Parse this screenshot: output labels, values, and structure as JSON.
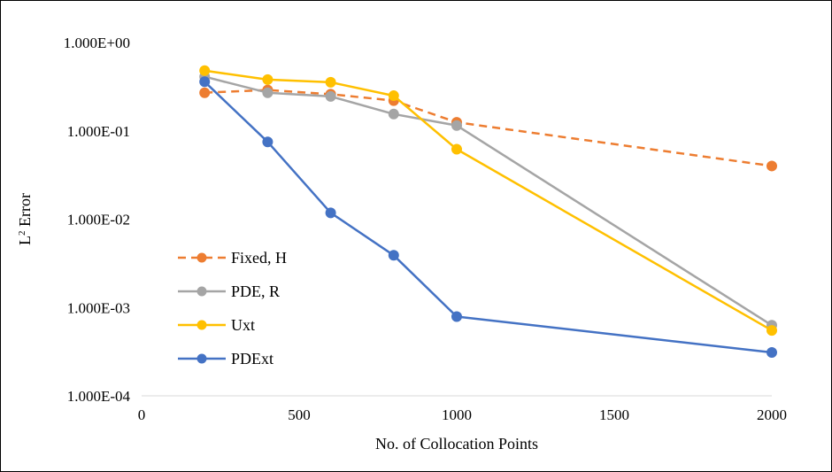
{
  "chart_data": {
    "type": "line",
    "xlabel": "No. of Collocation Points",
    "ylabel_main": "L",
    "ylabel_sup": "2",
    "ylabel_rest": " Error",
    "xlim": [
      0,
      2000
    ],
    "ylim": [
      0.0001,
      1
    ],
    "yscale": "log",
    "x_ticks": [
      0,
      500,
      1000,
      1500,
      2000
    ],
    "x_tick_labels": [
      "0",
      "500",
      "1000",
      "1500",
      "2000"
    ],
    "y_ticks": [
      1,
      0.1,
      0.01,
      0.001,
      0.0001
    ],
    "y_tick_labels": [
      "1.000E+00",
      "1.000E-01",
      "1.000E-02",
      "1.000E-03",
      "1.000E-04"
    ],
    "grid": false,
    "legend_position": "left-bottom inside",
    "series": [
      {
        "name": "Fixed, H",
        "color": "#ED7D31",
        "dashed": true,
        "points": [
          [
            200,
            0.27
          ],
          [
            400,
            0.29
          ],
          [
            600,
            0.26
          ],
          [
            800,
            0.22
          ],
          [
            1000,
            0.125
          ],
          [
            2000,
            0.04
          ]
        ]
      },
      {
        "name": "PDE, R",
        "color": "#A5A5A5",
        "dashed": false,
        "points": [
          [
            200,
            0.41
          ],
          [
            400,
            0.27
          ],
          [
            600,
            0.245
          ],
          [
            800,
            0.155
          ],
          [
            1000,
            0.115
          ],
          [
            2000,
            0.00063
          ]
        ]
      },
      {
        "name": "Uxt",
        "color": "#FFC000",
        "dashed": false,
        "points": [
          [
            200,
            0.48
          ],
          [
            400,
            0.38
          ],
          [
            600,
            0.355
          ],
          [
            800,
            0.25
          ],
          [
            1000,
            0.062
          ],
          [
            2000,
            0.00055
          ]
        ]
      },
      {
        "name": "PDExt",
        "color": "#4472C4",
        "dashed": false,
        "points": [
          [
            200,
            0.36
          ],
          [
            400,
            0.075
          ],
          [
            600,
            0.0118
          ],
          [
            800,
            0.0039
          ],
          [
            1000,
            0.00079
          ],
          [
            2000,
            0.00031
          ]
        ]
      }
    ]
  }
}
